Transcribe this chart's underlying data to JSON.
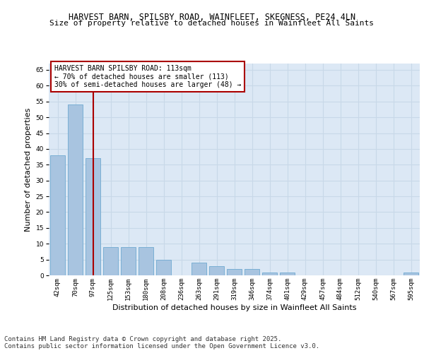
{
  "title": "HARVEST BARN, SPILSBY ROAD, WAINFLEET, SKEGNESS, PE24 4LN",
  "subtitle": "Size of property relative to detached houses in Wainfleet All Saints",
  "xlabel": "Distribution of detached houses by size in Wainfleet All Saints",
  "ylabel": "Number of detached properties",
  "categories": [
    "42sqm",
    "70sqm",
    "97sqm",
    "125sqm",
    "153sqm",
    "180sqm",
    "208sqm",
    "236sqm",
    "263sqm",
    "291sqm",
    "319sqm",
    "346sqm",
    "374sqm",
    "401sqm",
    "429sqm",
    "457sqm",
    "484sqm",
    "512sqm",
    "540sqm",
    "567sqm",
    "595sqm"
  ],
  "values": [
    38,
    54,
    37,
    9,
    9,
    9,
    5,
    0,
    4,
    3,
    2,
    2,
    1,
    1,
    0,
    0,
    0,
    0,
    0,
    0,
    1
  ],
  "bar_color": "#a8c4e0",
  "bar_edge_color": "#7aafd4",
  "vline_index": 2,
  "vline_color": "#aa0000",
  "annotation_text": "HARVEST BARN SPILSBY ROAD: 113sqm\n← 70% of detached houses are smaller (113)\n30% of semi-detached houses are larger (48) →",
  "annotation_box_color": "white",
  "annotation_box_edge_color": "#aa0000",
  "ylim": [
    0,
    67
  ],
  "yticks": [
    0,
    5,
    10,
    15,
    20,
    25,
    30,
    35,
    40,
    45,
    50,
    55,
    60,
    65
  ],
  "grid_color": "#c8d8e8",
  "background_color": "#dce8f5",
  "footer": "Contains HM Land Registry data © Crown copyright and database right 2025.\nContains public sector information licensed under the Open Government Licence v3.0.",
  "title_fontsize": 8.5,
  "subtitle_fontsize": 8,
  "xlabel_fontsize": 8,
  "ylabel_fontsize": 8,
  "tick_fontsize": 6.5,
  "annotation_fontsize": 7,
  "footer_fontsize": 6.5
}
